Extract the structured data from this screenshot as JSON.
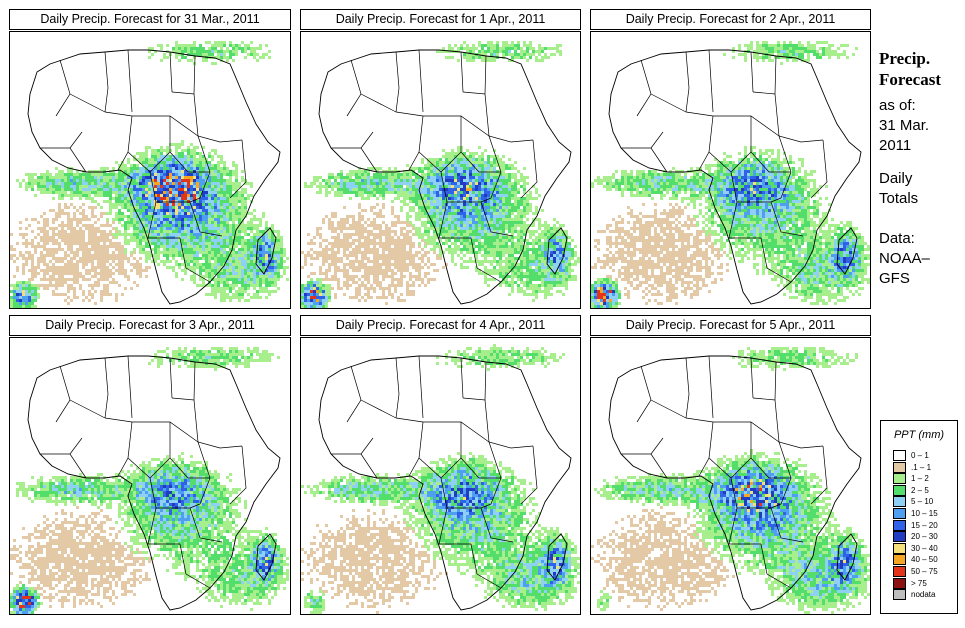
{
  "panels": [
    {
      "title": "Daily Precip. Forecast for  31 Mar., 2011",
      "date": "31 Mar., 2011",
      "intensity": 1.0,
      "south_storm": 0.7,
      "east_band": 0.7
    },
    {
      "title": "Daily Precip. Forecast for  1 Apr., 2011",
      "date": "1 Apr., 2011",
      "intensity": 0.75,
      "south_storm": 0.9,
      "east_band": 0.6
    },
    {
      "title": "Daily Precip. Forecast for  2 Apr., 2011",
      "date": "2 Apr., 2011",
      "intensity": 0.7,
      "south_storm": 1.0,
      "east_band": 0.8
    },
    {
      "title": "Daily Precip. Forecast for  3 Apr., 2011",
      "date": "3 Apr., 2011",
      "intensity": 0.65,
      "south_storm": 1.0,
      "east_band": 0.7
    },
    {
      "title": "Daily Precip. Forecast for  4 Apr., 2011",
      "date": "4 Apr., 2011",
      "intensity": 0.7,
      "south_storm": 0.3,
      "east_band": 0.9
    },
    {
      "title": "Daily Precip. Forecast for  5 Apr., 2011",
      "date": "5 Apr., 2011",
      "intensity": 0.85,
      "south_storm": 0.2,
      "east_band": 1.0
    }
  ],
  "sidebar": {
    "title_line1": "Precip.",
    "title_line2": "Forecast",
    "asof_label": "as of:",
    "asof_date_line1": "31 Mar.",
    "asof_date_line2": "2011",
    "period_line1": "Daily",
    "period_line2": "Totals",
    "source_line1": "Data:",
    "source_line2": "NOAA–",
    "source_line3": "GFS"
  },
  "legend": {
    "title": "PPT (mm)",
    "items": [
      {
        "label": "0 – 1",
        "color": "#ffffff"
      },
      {
        "label": ".1 – 1",
        "color": "#e3c9a5"
      },
      {
        "label": "1 – 2",
        "color": "#a7ef8d"
      },
      {
        "label": "2 – 5",
        "color": "#53de6c"
      },
      {
        "label": "5 – 10",
        "color": "#8fd0f5"
      },
      {
        "label": "10 – 15",
        "color": "#4e9ff0"
      },
      {
        "label": "15 – 20",
        "color": "#2f62e6"
      },
      {
        "label": "20 – 30",
        "color": "#1f3cc2"
      },
      {
        "label": "30 – 40",
        "color": "#f6e07a"
      },
      {
        "label": "40 – 50",
        "color": "#f5a623"
      },
      {
        "label": "50 – 75",
        "color": "#e1341a"
      },
      {
        "label": "> 75",
        "color": "#8c1111"
      },
      {
        "label": "nodata",
        "color": "#bdbdbd"
      }
    ]
  }
}
